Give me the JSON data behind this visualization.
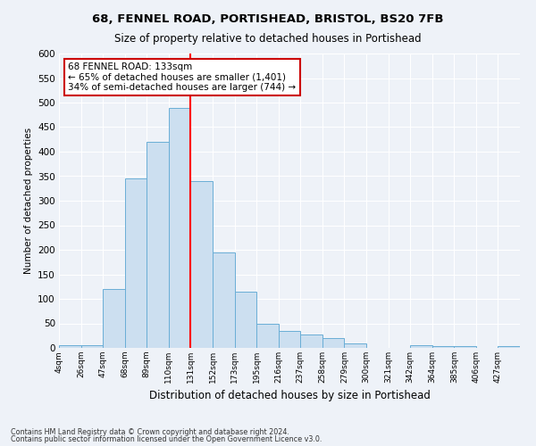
{
  "title": "68, FENNEL ROAD, PORTISHEAD, BRISTOL, BS20 7FB",
  "subtitle": "Size of property relative to detached houses in Portishead",
  "xlabel": "Distribution of detached houses by size in Portishead",
  "ylabel": "Number of detached properties",
  "bin_labels": [
    "4sqm",
    "26sqm",
    "47sqm",
    "68sqm",
    "89sqm",
    "110sqm",
    "131sqm",
    "152sqm",
    "173sqm",
    "195sqm",
    "216sqm",
    "237sqm",
    "258sqm",
    "279sqm",
    "300sqm",
    "321sqm",
    "342sqm",
    "364sqm",
    "385sqm",
    "406sqm",
    "427sqm"
  ],
  "bar_heights": [
    5,
    5,
    120,
    345,
    420,
    490,
    340,
    195,
    115,
    50,
    35,
    28,
    20,
    10,
    0,
    0,
    5,
    3,
    3,
    0,
    3
  ],
  "bar_color": "#ccdff0",
  "bar_edge_color": "#6aaed6",
  "annotation_title": "68 FENNEL ROAD: 133sqm",
  "annotation_line1": "← 65% of detached houses are smaller (1,401)",
  "annotation_line2": "34% of semi-detached houses are larger (744) →",
  "annotation_box_color": "#ffffff",
  "annotation_box_edge_color": "#cc0000",
  "ref_bar_index": 6,
  "ylim": [
    0,
    600
  ],
  "yticks": [
    0,
    50,
    100,
    150,
    200,
    250,
    300,
    350,
    400,
    450,
    500,
    550,
    600
  ],
  "footer1": "Contains HM Land Registry data © Crown copyright and database right 2024.",
  "footer2": "Contains public sector information licensed under the Open Government Licence v3.0.",
  "bg_color": "#eef2f8",
  "grid_color": "#ffffff"
}
